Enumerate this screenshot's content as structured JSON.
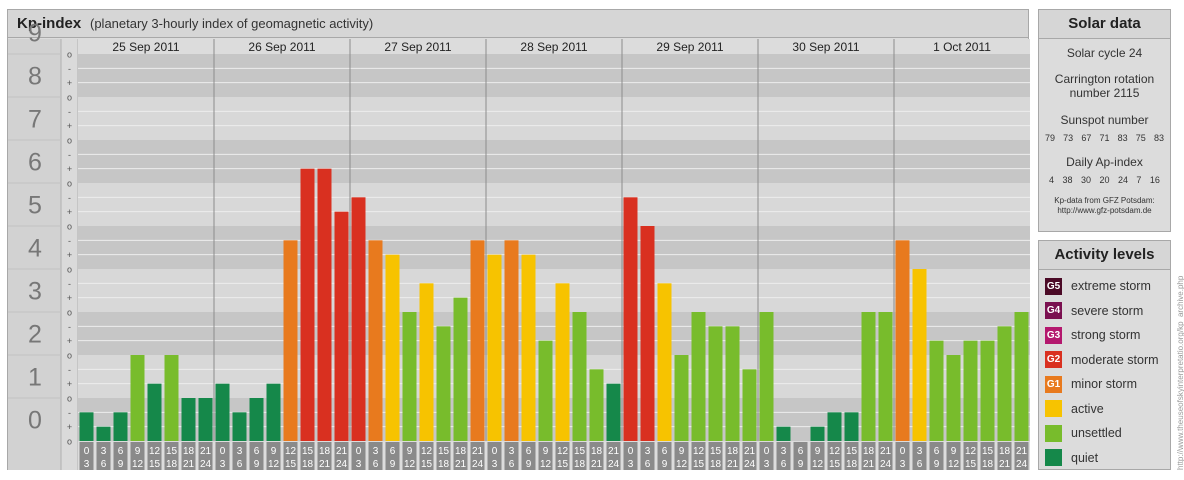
{
  "title": "Kp-index",
  "subtitle": "(planetary 3-hourly index of geomagnetic activity)",
  "chart_data": {
    "type": "bar",
    "title": "Kp-index",
    "subtitle": "(planetary 3-hourly index of geomagnetic activity)",
    "ylim": [
      0,
      9
    ],
    "y_ticks": [
      "0",
      "1",
      "2",
      "3",
      "4",
      "5",
      "6",
      "7",
      "8",
      "9"
    ],
    "y_minor_ticks": [
      "o",
      "+",
      "-"
    ],
    "days": [
      "25 Sep 2011",
      "26 Sep 2011",
      "27 Sep 2011",
      "28 Sep 2011",
      "29 Sep 2011",
      "30 Sep 2011",
      "1 Oct 2011"
    ],
    "interval_labels": [
      [
        "0",
        "3"
      ],
      [
        "3",
        "6"
      ],
      [
        "6",
        "9"
      ],
      [
        "9",
        "12"
      ],
      [
        "12",
        "15"
      ],
      [
        "15",
        "18"
      ],
      [
        "18",
        "21"
      ],
      [
        "21",
        "24"
      ]
    ],
    "values": [
      [
        0.667,
        0.333,
        0.667,
        2.0,
        1.333,
        2.0,
        1.0,
        1.0
      ],
      [
        1.333,
        0.667,
        1.0,
        1.333,
        4.667,
        6.333,
        6.333,
        5.333
      ],
      [
        5.667,
        4.667,
        4.333,
        3.0,
        3.667,
        2.667,
        3.333,
        4.667
      ],
      [
        4.333,
        4.667,
        4.333,
        2.333,
        3.667,
        3.0,
        1.667,
        1.333
      ],
      [
        5.667,
        5.0,
        3.667,
        2.0,
        3.0,
        2.667,
        2.667,
        1.667
      ],
      [
        3.0,
        0.333,
        0.0,
        0.333,
        0.667,
        0.667,
        3.0,
        3.0
      ],
      [
        4.667,
        4.0,
        2.333,
        2.0,
        2.333,
        2.333,
        2.667,
        3.0
      ]
    ]
  },
  "solar": {
    "title": "Solar data",
    "cycle": "Solar cycle 24",
    "carrington_1": "Carrington rotation",
    "carrington_2": "number 2115",
    "sunspot_title": "Sunspot number",
    "sunspots": [
      "79",
      "73",
      "67",
      "71",
      "83",
      "75",
      "83"
    ],
    "ap_title": "Daily Ap-index",
    "ap": [
      "4",
      "38",
      "30",
      "20",
      "24",
      "7",
      "16"
    ],
    "source_1": "Kp-data from GFZ Potsdam:",
    "source_2": "http://www.gfz-potsdam.de"
  },
  "levels": {
    "title": "Activity levels",
    "items": [
      {
        "badge": "G5",
        "label": "extreme storm",
        "color": "#4b0a26"
      },
      {
        "badge": "G4",
        "label": "severe storm",
        "color": "#7a1050"
      },
      {
        "badge": "G3",
        "label": "strong storm",
        "color": "#b4186e"
      },
      {
        "badge": "G2",
        "label": "moderate storm",
        "color": "#d93020"
      },
      {
        "badge": "G1",
        "label": "minor storm",
        "color": "#e87a1e"
      },
      {
        "badge": "",
        "label": "active",
        "color": "#f7c300"
      },
      {
        "badge": "",
        "label": "unsettled",
        "color": "#78bc2c"
      },
      {
        "badge": "",
        "label": "quiet",
        "color": "#15884a"
      }
    ]
  },
  "colors": {
    "quiet": "#15884a",
    "unsettled": "#78bc2c",
    "active": "#f7c300",
    "g1": "#e87a1e",
    "g2": "#d93020",
    "g3": "#b4186e"
  },
  "watermark": "http://www.theuseofskyinterpretatio.org/kp_archive.php"
}
